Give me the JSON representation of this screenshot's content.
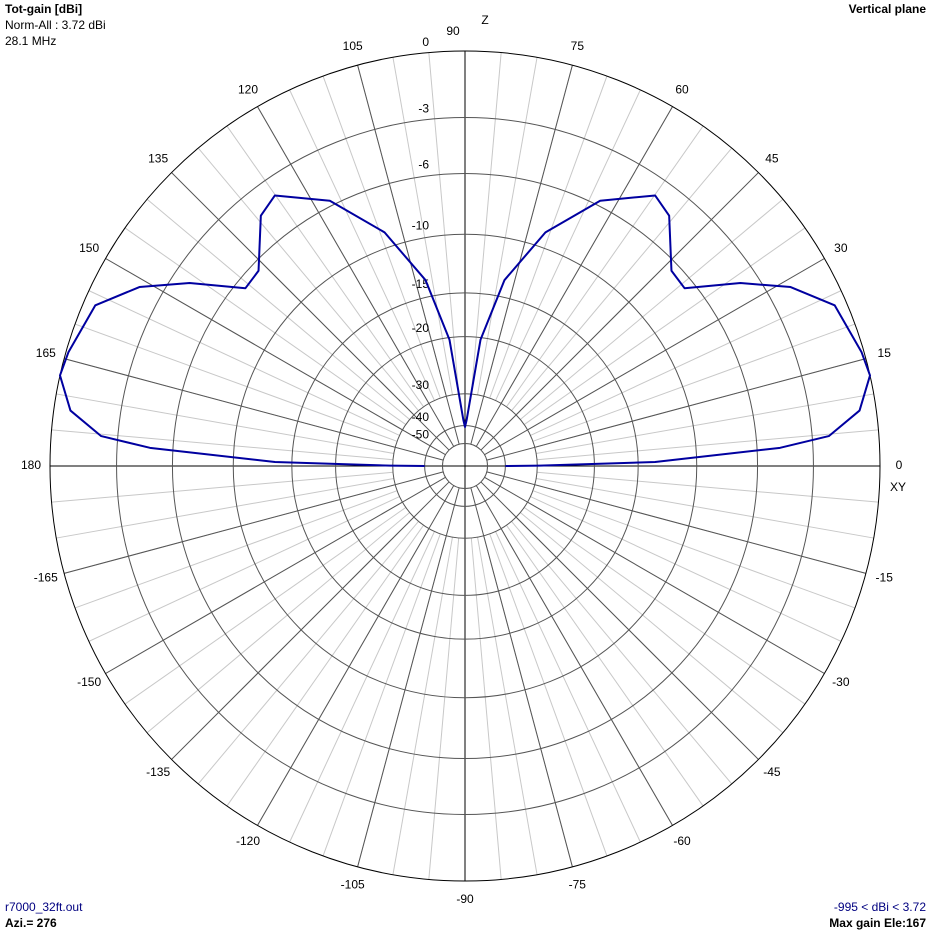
{
  "chart_data": {
    "type": "polar",
    "title": "Tot-gain [dBi]",
    "subtitle": "Norm-All : 3.72 dBi",
    "frequency": "28.1 MHz",
    "plane": "Vertical plane",
    "top_axis_label": "Z",
    "right_axis_label": "XY",
    "file": "r7000_32ft.out",
    "azimuth": "Azi.= 276",
    "range_note": "-995 < dBi < 3.72",
    "max_gain": "Max gain Ele:167",
    "rticks": [
      0,
      -3,
      -6,
      -10,
      -15,
      -20,
      -30,
      -40,
      -50
    ],
    "thetaticks": [
      0,
      15,
      30,
      45,
      60,
      75,
      90,
      105,
      120,
      135,
      150,
      165,
      180,
      -165,
      -150,
      -135,
      -120,
      -105,
      -90,
      -75,
      -60,
      -45,
      -30,
      -15
    ],
    "series": [
      {
        "color": "#0000a0",
        "x": [
          0,
          0.3,
          1.2,
          3.3,
          4.7,
          8,
          12.6,
          16,
          23.5,
          28.8,
          33.6,
          39,
          43.4,
          50.8,
          54.9,
          63,
          71,
          78,
          83,
          88,
          90,
          92,
          97,
          102,
          109,
          117,
          125.1,
          129.2,
          136.6,
          141,
          146.4,
          151.2,
          156.5,
          164,
          167.4,
          172,
          175.3,
          176.7,
          178.8,
          179.7,
          180
        ],
        "values": [
          -40,
          -29.4,
          -13.4,
          -4.7,
          -2.2,
          -0.7,
          0,
          -0.1,
          -0.5,
          -1.9,
          -3.9,
          -6.6,
          -6.5,
          -4.3,
          -3.9,
          -5.7,
          -8.9,
          -13.4,
          -20.3,
          -37.8,
          -40.6,
          -37.8,
          -20.3,
          -13.4,
          -8.9,
          -5.7,
          -3.9,
          -4.3,
          -6.5,
          -6.6,
          -3.9,
          -1.9,
          -0.5,
          -0.1,
          0,
          -0.7,
          -2.2,
          -4.7,
          -13.4,
          -29.4,
          -40
        ]
      }
    ]
  }
}
